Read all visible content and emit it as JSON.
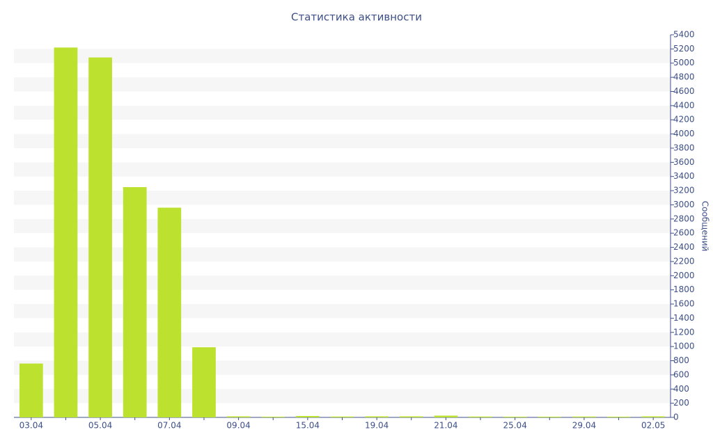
{
  "chart_data": {
    "type": "bar",
    "title": "Статистика активности",
    "y_label": "Сообщений",
    "categories": [
      "03.04",
      null,
      "05.04",
      null,
      "07.04",
      null,
      "09.04",
      null,
      "15.04",
      null,
      "19.04",
      null,
      "21.04",
      null,
      "25.04",
      null,
      "29.04",
      null,
      "02.05"
    ],
    "values": [
      760,
      5220,
      5080,
      3250,
      2960,
      990,
      15,
      10,
      20,
      12,
      15,
      15,
      25,
      12,
      10,
      10,
      12,
      10,
      15
    ],
    "color": "#bde12f",
    "ylim": [
      0,
      5400
    ],
    "yticks": [
      0,
      200,
      400,
      600,
      800,
      1000,
      1200,
      1400,
      1600,
      1800,
      2000,
      2200,
      2400,
      2600,
      2800,
      3000,
      3200,
      3400,
      3600,
      3800,
      4000,
      4200,
      4400,
      4600,
      4800,
      5000,
      5200,
      5400
    ],
    "grid": true
  }
}
